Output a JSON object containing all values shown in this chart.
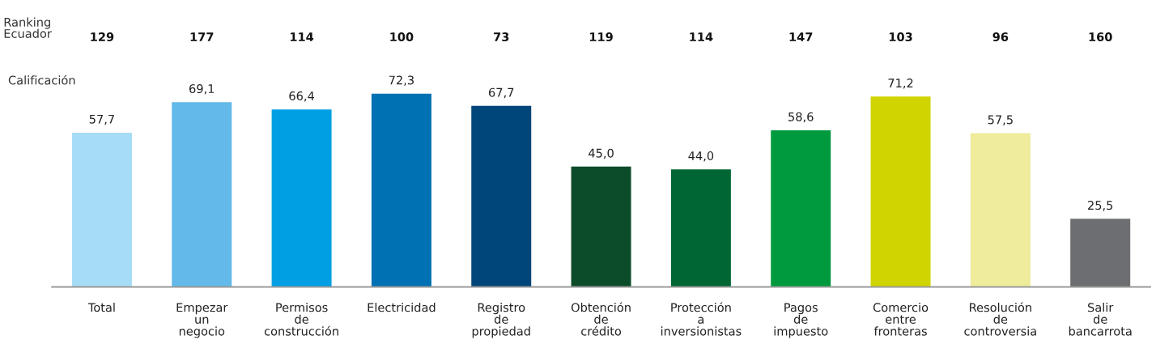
{
  "chart_data": {
    "type": "bar",
    "ylabel": "Calificación",
    "categories": [
      "Total",
      "Empezar\nun\nnegocio",
      "Permisos\nde\nconstrucción",
      "Electricidad",
      "Registro\nde\npropiedad",
      "Obtención\nde\ncrédito",
      "Protección\na\ninversionistas",
      "Pagos\nde\nimpuesto",
      "Comercio\nentre\nfronteras",
      "Resolución\nde\ncontroversia",
      "Salir\nde\nbancarrota"
    ],
    "values": [
      57.7,
      69.1,
      66.4,
      72.3,
      67.7,
      45.0,
      44.0,
      58.6,
      71.2,
      57.5,
      25.5
    ],
    "value_labels": [
      "57,7",
      "69,1",
      "66,4",
      "72,3",
      "67,7",
      "45,0",
      "44,0",
      "58,6",
      "71,2",
      "57,5",
      "25,5"
    ],
    "colors": [
      "#a6dcf5",
      "#63b9e9",
      "#009fe3",
      "#0071b3",
      "#00467a",
      "#0d4c2a",
      "#006633",
      "#009a3e",
      "#d0d400",
      "#efec9b",
      "#6d6e71"
    ],
    "annotations": [
      "Ranking\nEcuador",
      "129",
      "177",
      "114",
      "100",
      "73",
      "119",
      "114",
      "147",
      "103",
      "96",
      "160"
    ],
    "grid": false,
    "legend": false
  }
}
